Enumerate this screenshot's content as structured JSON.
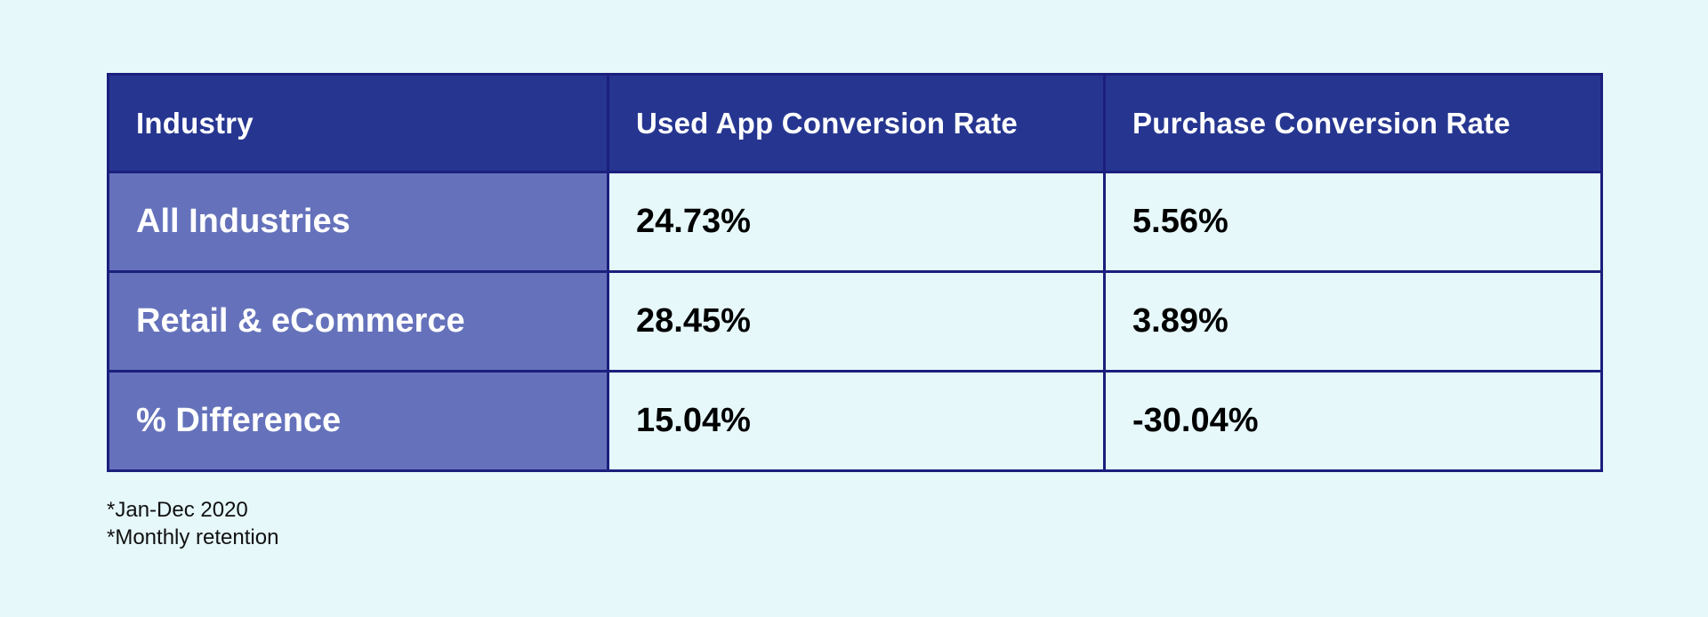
{
  "colors": {
    "background": "#e6f8fa",
    "header_bg": "#263690",
    "row_label_bg": "#6572bb",
    "border": "#1b1f7d",
    "header_text": "#ffffff",
    "value_text": "#000000"
  },
  "chart_data": {
    "type": "table",
    "columns": [
      "Industry",
      "Used App Conversion Rate",
      "Purchase Conversion Rate"
    ],
    "rows": [
      [
        "All Industries",
        "24.73%",
        "5.56%"
      ],
      [
        "Retail & eCommerce",
        "28.45%",
        "3.89%"
      ],
      [
        "% Difference",
        "15.04%",
        "-30.04%"
      ]
    ]
  },
  "footnotes": [
    "*Jan-Dec 2020",
    "*Monthly retention"
  ]
}
